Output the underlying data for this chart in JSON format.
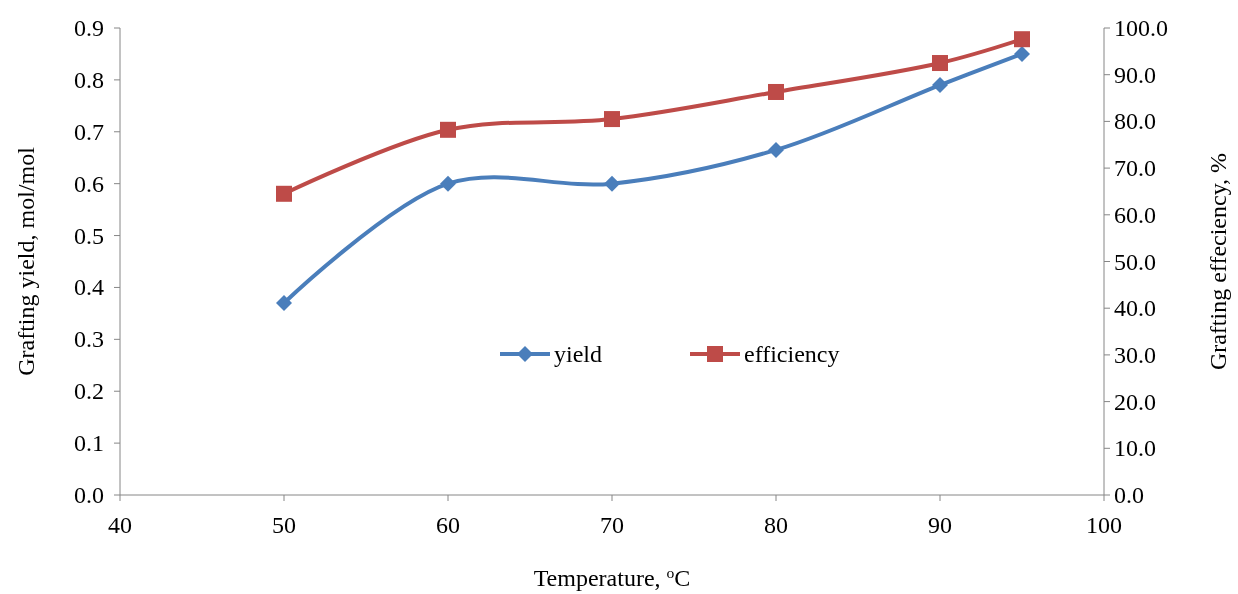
{
  "chart_data": {
    "type": "line",
    "xlabel": "Temperature, $^{o}$C",
    "ylabel": "Grafting yield, mol/mol",
    "y2label": "Grafting effeciency, %",
    "x": [
      50,
      60,
      70,
      80,
      90,
      95
    ],
    "series": [
      {
        "name": "yield",
        "color": "#4a7ebb",
        "values": [
          0.37,
          0.6,
          0.6,
          0.665,
          0.79,
          0.85
        ],
        "marker": "diamond"
      },
      {
        "name": "efficiency",
        "color": "#be4b48",
        "values": [
          64.5,
          78.2,
          80.5,
          86.3,
          92.5,
          97.6
        ],
        "marker": "square",
        "axis": "y2"
      }
    ],
    "xlim": [
      40,
      100
    ],
    "xticks": [
      40,
      50,
      60,
      70,
      80,
      90,
      100
    ],
    "ylim": [
      0,
      0.9
    ],
    "yticks": [
      {
        "value": 0,
        "label": "0.0"
      },
      0.1,
      0.2,
      0.3,
      0.4,
      0.5,
      0.6,
      0.7,
      0.8,
      0.9
    ],
    "y2lim": [
      0,
      100
    ],
    "y2ticks": [
      {
        "value": 0,
        "label": "0.0"
      },
      {
        "value": 10,
        "label": "10.0"
      },
      {
        "value": 20,
        "label": "20.0"
      },
      {
        "value": 30,
        "label": "30.0"
      },
      {
        "value": 40,
        "label": "40.0"
      },
      {
        "value": 50,
        "label": "50.0"
      },
      {
        "value": 60,
        "label": "60.0"
      },
      {
        "value": 70,
        "label": "70.0"
      },
      {
        "value": 80,
        "label": "80.0"
      },
      {
        "value": 90,
        "label": "90.0"
      },
      {
        "value": 100,
        "label": "100.0"
      }
    ],
    "grid": false,
    "legend": "center",
    "line_style": "solid"
  }
}
